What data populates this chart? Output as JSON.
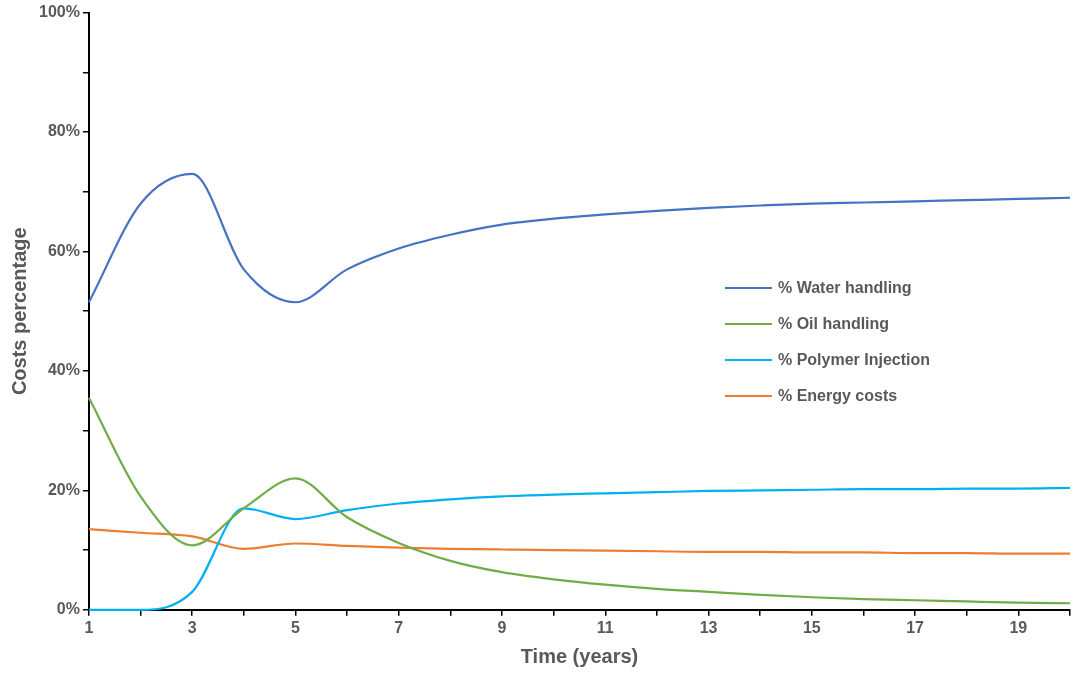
{
  "chart_data": {
    "type": "line",
    "xlabel": "Time (years)",
    "ylabel": "Costs percentage",
    "x": [
      1,
      2,
      3,
      4,
      5,
      6,
      7,
      8,
      9,
      10,
      11,
      12,
      13,
      14,
      15,
      16,
      17,
      18,
      19,
      20
    ],
    "xlim": [
      1,
      20
    ],
    "xticks": [
      1,
      {
        "value": 2,
        "label": null
      },
      3,
      {
        "value": 4,
        "label": null
      },
      5,
      {
        "value": 6,
        "label": null
      },
      7,
      {
        "value": 8,
        "label": null
      },
      9,
      {
        "value": 10,
        "label": null
      },
      11,
      {
        "value": 12,
        "label": null
      },
      13,
      {
        "value": 14,
        "label": null
      },
      15,
      {
        "value": 16,
        "label": null
      },
      17,
      {
        "value": 18,
        "label": null
      },
      19,
      {
        "value": 20,
        "label": null
      }
    ],
    "ylim": [
      0,
      100
    ],
    "yticks": [
      {
        "value": 0,
        "label": "0%"
      },
      {
        "value": 10,
        "label": null
      },
      {
        "value": 20,
        "label": "20%"
      },
      {
        "value": 30,
        "label": null
      },
      {
        "value": 40,
        "label": "40%"
      },
      {
        "value": 50,
        "label": null
      },
      {
        "value": 60,
        "label": "60%"
      },
      {
        "value": 70,
        "label": null
      },
      {
        "value": 80,
        "label": "80%"
      },
      {
        "value": 90,
        "label": null
      },
      {
        "value": 100,
        "label": "100%"
      }
    ],
    "grid": false,
    "legend": "right",
    "marker": "none",
    "line_style": "solid",
    "series": [
      {
        "name": "% Water handling",
        "color": "#4472c4",
        "values": [
          51.5,
          68,
          73,
          57,
          51.5,
          57,
          60.5,
          62.8,
          64.5,
          65.5,
          66.2,
          66.8,
          67.3,
          67.7,
          68,
          68.2,
          68.4,
          68.6,
          68.8,
          69
        ]
      },
      {
        "name": "% Oil handling",
        "color": "#70ad47",
        "values": [
          35.5,
          19,
          10.8,
          17,
          22,
          15.5,
          11.2,
          8.2,
          6.3,
          5.1,
          4.2,
          3.5,
          3,
          2.5,
          2.1,
          1.8,
          1.6,
          1.4,
          1.2,
          1.1
        ]
      },
      {
        "name": "% Polymer Injection",
        "color": "#00b0f0",
        "values": [
          0,
          0,
          3,
          17,
          15.2,
          16.7,
          17.8,
          18.5,
          19,
          19.3,
          19.5,
          19.7,
          19.9,
          20,
          20.1,
          20.2,
          20.2,
          20.3,
          20.3,
          20.4
        ]
      },
      {
        "name": "% Energy costs",
        "color": "#ed7d31",
        "values": [
          13.5,
          12.9,
          12.3,
          10.2,
          11.1,
          10.7,
          10.4,
          10.2,
          10.1,
          10,
          9.9,
          9.8,
          9.7,
          9.7,
          9.6,
          9.6,
          9.5,
          9.5,
          9.4,
          9.4
        ]
      }
    ]
  }
}
